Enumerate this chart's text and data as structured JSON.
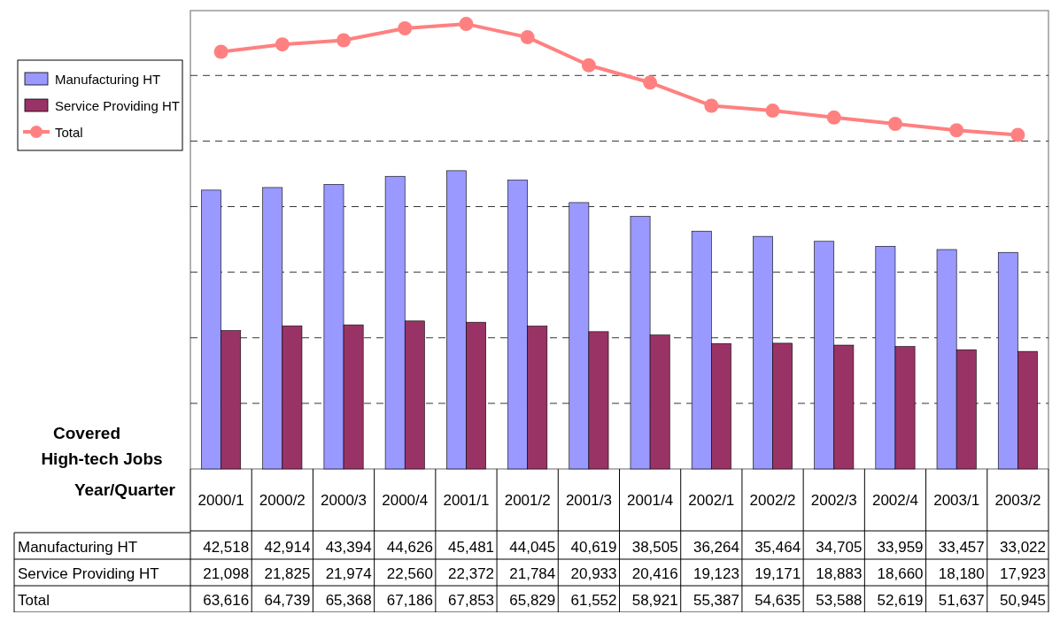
{
  "chart_data": {
    "type": "bar",
    "xlabel": "Year/Quarter",
    "ylabel": "Covered High-tech Jobs",
    "categories": [
      "2000/1",
      "2000/2",
      "2000/3",
      "2000/4",
      "2001/1",
      "2001/2",
      "2001/3",
      "2001/4",
      "2002/1",
      "2002/2",
      "2002/3",
      "2002/4",
      "2003/1",
      "2003/2"
    ],
    "series": [
      {
        "name": "Manufacturing HT",
        "color": "#9999ff",
        "values": [
          42518,
          42914,
          43394,
          44626,
          45481,
          44045,
          40619,
          38505,
          36264,
          35464,
          34705,
          33959,
          33457,
          33022
        ],
        "value_labels": [
          "42,518",
          "42,914",
          "43,394",
          "44,626",
          "45,481",
          "44,045",
          "40,619",
          "38,505",
          "36,264",
          "35,464",
          "34,705",
          "33,959",
          "33,457",
          "33,022"
        ]
      },
      {
        "name": "Service Providing HT",
        "color": "#993366",
        "values": [
          21098,
          21825,
          21974,
          22560,
          22372,
          21784,
          20933,
          20416,
          19123,
          19171,
          18883,
          18660,
          18180,
          17923
        ],
        "value_labels": [
          "21,098",
          "21,825",
          "21,974",
          "22,560",
          "22,372",
          "21,784",
          "20,933",
          "20,416",
          "19,123",
          "19,171",
          "18,883",
          "18,660",
          "18,180",
          "17,923"
        ]
      },
      {
        "name": "Total",
        "type": "line",
        "color": "#ff8080",
        "marker": "circle",
        "values": [
          63616,
          64739,
          65368,
          67186,
          67853,
          65829,
          61552,
          58921,
          55387,
          54635,
          53588,
          52619,
          51637,
          50945
        ],
        "value_labels": [
          "63,616",
          "64,739",
          "65,368",
          "67,186",
          "67,853",
          "65,829",
          "61,552",
          "58,921",
          "55,387",
          "54,635",
          "53,588",
          "52,619",
          "51,637",
          "50,945"
        ]
      }
    ],
    "grid": "y",
    "legend": "left"
  }
}
